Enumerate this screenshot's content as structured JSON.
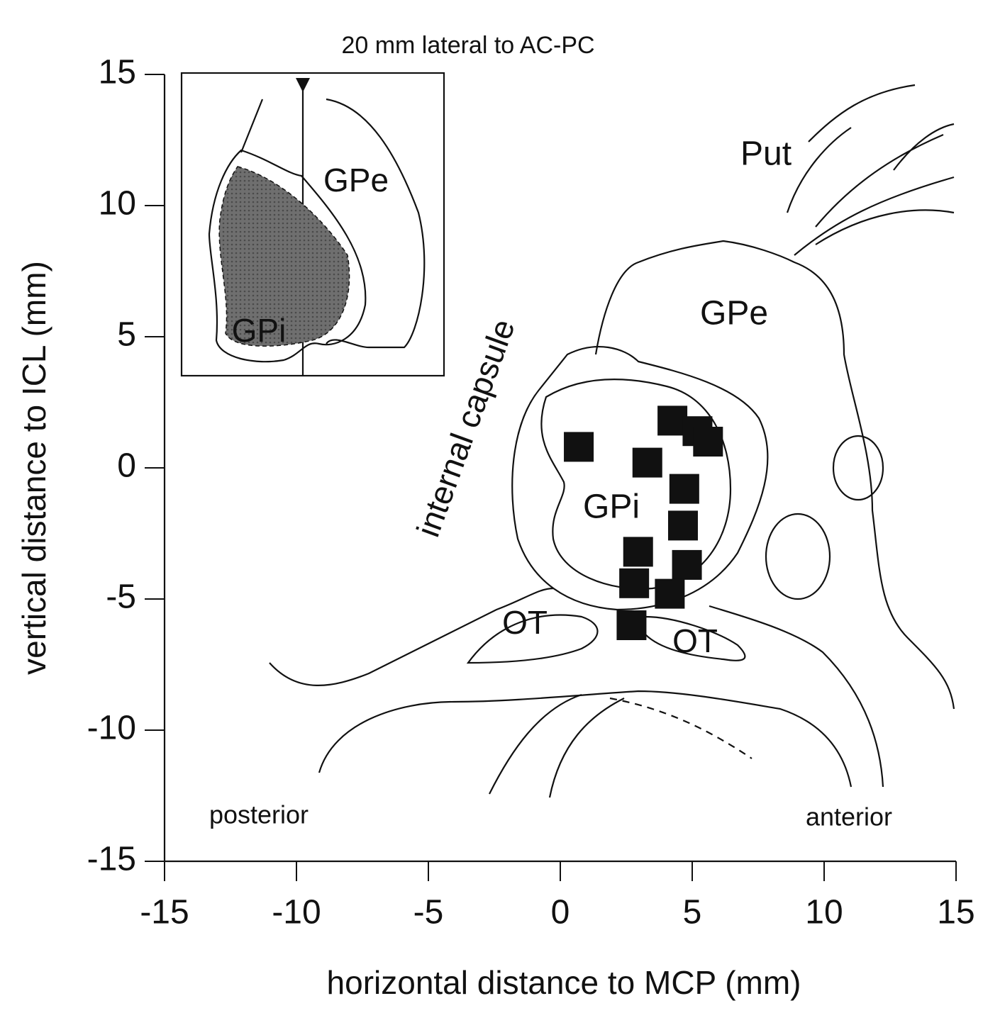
{
  "chart_data": {
    "type": "scatter",
    "xlabel": "horizontal distance to MCP (mm)",
    "ylabel": "vertical distance to ICL (mm)",
    "annotations": [
      "20 mm lateral to AC-PC",
      "Put",
      "GPe",
      "GPi",
      "internal capsule",
      "OT",
      "OT",
      "posterior",
      "anterior",
      "GPe",
      "GPi"
    ],
    "x": [
      0.7,
      4.25,
      5.2,
      5.6,
      3.3,
      4.7,
      4.65,
      2.95,
      4.8,
      2.8,
      4.15,
      2.7
    ],
    "values": [
      0.8,
      1.8,
      1.4,
      1.0,
      0.2,
      -0.8,
      -2.2,
      -3.2,
      -3.7,
      -4.4,
      -4.8,
      -6.0
    ],
    "color": "#111111",
    "xlim": [
      -15,
      15
    ],
    "xticks": [
      -15,
      -10,
      -5,
      0,
      5,
      10,
      15
    ],
    "ylim": [
      -15,
      15
    ],
    "yticks": [
      15,
      10,
      5,
      0,
      -5,
      -10,
      -15
    ]
  }
}
